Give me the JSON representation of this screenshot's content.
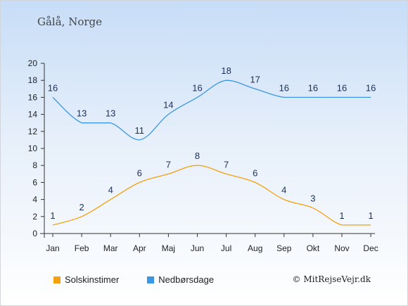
{
  "title": "Gålå, Norge",
  "copyright": "© MitRejseVejr.dk",
  "colors": {
    "sun": "#f5a00f",
    "rain": "#3b97e3",
    "axis": "#333333"
  },
  "chart_data": {
    "type": "line",
    "categories": [
      "Jan",
      "Feb",
      "Mar",
      "Apr",
      "Maj",
      "Jun",
      "Jul",
      "Aug",
      "Sep",
      "Okt",
      "Nov",
      "Dec"
    ],
    "ylim": [
      0,
      20
    ],
    "yticks": [
      0,
      2,
      4,
      6,
      8,
      10,
      12,
      14,
      16,
      18,
      20
    ],
    "grid": false,
    "legend_position": "bottom-left",
    "series": [
      {
        "name": "Solskinstimer",
        "color": "#f5a00f",
        "values": [
          1,
          2,
          4,
          6,
          7,
          8,
          7,
          6,
          4,
          3,
          1,
          1
        ]
      },
      {
        "name": "Nedbørsdage",
        "color": "#3b97e3",
        "values": [
          16,
          13,
          13,
          11,
          14,
          16,
          18,
          17,
          16,
          16,
          16,
          16
        ]
      }
    ]
  }
}
